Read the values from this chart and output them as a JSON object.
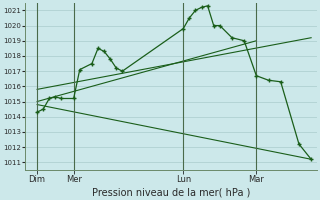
{
  "xlabel": "Pression niveau de la mer( hPa )",
  "bg_color": "#cce8ea",
  "grid_color": "#aacccc",
  "line_color": "#1a5e1a",
  "ylim": [
    1010.5,
    1021.5
  ],
  "yticks": [
    1011,
    1012,
    1013,
    1014,
    1015,
    1016,
    1017,
    1018,
    1019,
    1020,
    1021
  ],
  "xlim": [
    0,
    24
  ],
  "day_labels": [
    "Dim",
    "Mer",
    "Lun",
    "Mar"
  ],
  "day_positions": [
    1,
    4,
    13,
    19
  ],
  "vline_positions": [
    1,
    4,
    13,
    19
  ],
  "series1_x": [
    1.0,
    1.5,
    2.0,
    2.5,
    3.0,
    4.0,
    4.5,
    5.5,
    6.0,
    6.5,
    7.0,
    7.5,
    8.0,
    13.0,
    13.5,
    14.0,
    14.5,
    15.0,
    15.5,
    16.0,
    17.0,
    18.0,
    19.0,
    20.0,
    21.0,
    22.5,
    23.5
  ],
  "series1_y": [
    1014.3,
    1014.5,
    1015.2,
    1015.3,
    1015.2,
    1015.2,
    1017.1,
    1017.5,
    1018.5,
    1018.3,
    1017.8,
    1017.2,
    1017.0,
    1019.8,
    1020.5,
    1021.0,
    1021.2,
    1021.3,
    1020.0,
    1020.0,
    1019.2,
    1019.0,
    1016.7,
    1016.4,
    1016.3,
    1012.2,
    1011.2
  ],
  "trend1_x": [
    1.0,
    23.5
  ],
  "trend1_y": [
    1014.8,
    1011.2
  ],
  "trend2_x": [
    1.0,
    19.0
  ],
  "trend2_y": [
    1015.0,
    1019.0
  ],
  "trend3_x": [
    1.0,
    23.5
  ],
  "trend3_y": [
    1015.8,
    1019.2
  ]
}
